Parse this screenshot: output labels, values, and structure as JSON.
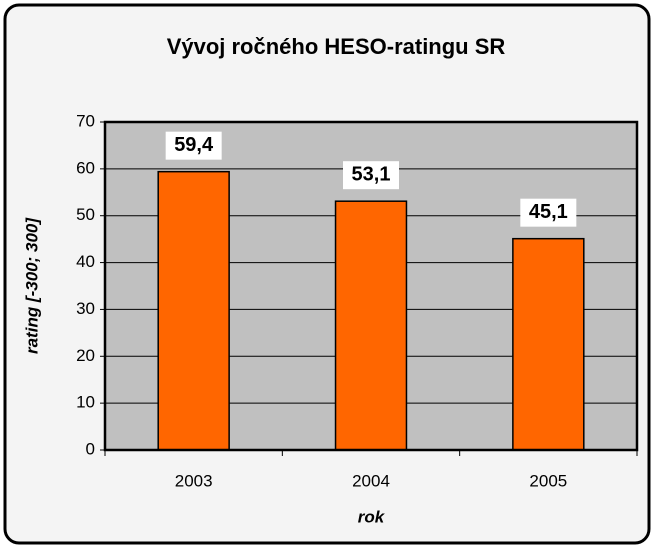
{
  "chart_data": {
    "type": "bar",
    "title": "Vývoj ročného HESO-ratingu SR",
    "categories": [
      "2003",
      "2004",
      "2005"
    ],
    "values": [
      59.4,
      53.1,
      45.1
    ],
    "value_labels": [
      "59,4",
      "53,1",
      "45,1"
    ],
    "color": "#ff6600",
    "y_label": "rating [-300; 300]",
    "x_label": "rok",
    "ylim": [
      0,
      70
    ],
    "yticks": [
      0,
      10,
      20,
      30,
      40,
      50,
      60,
      70
    ],
    "grid": true
  }
}
